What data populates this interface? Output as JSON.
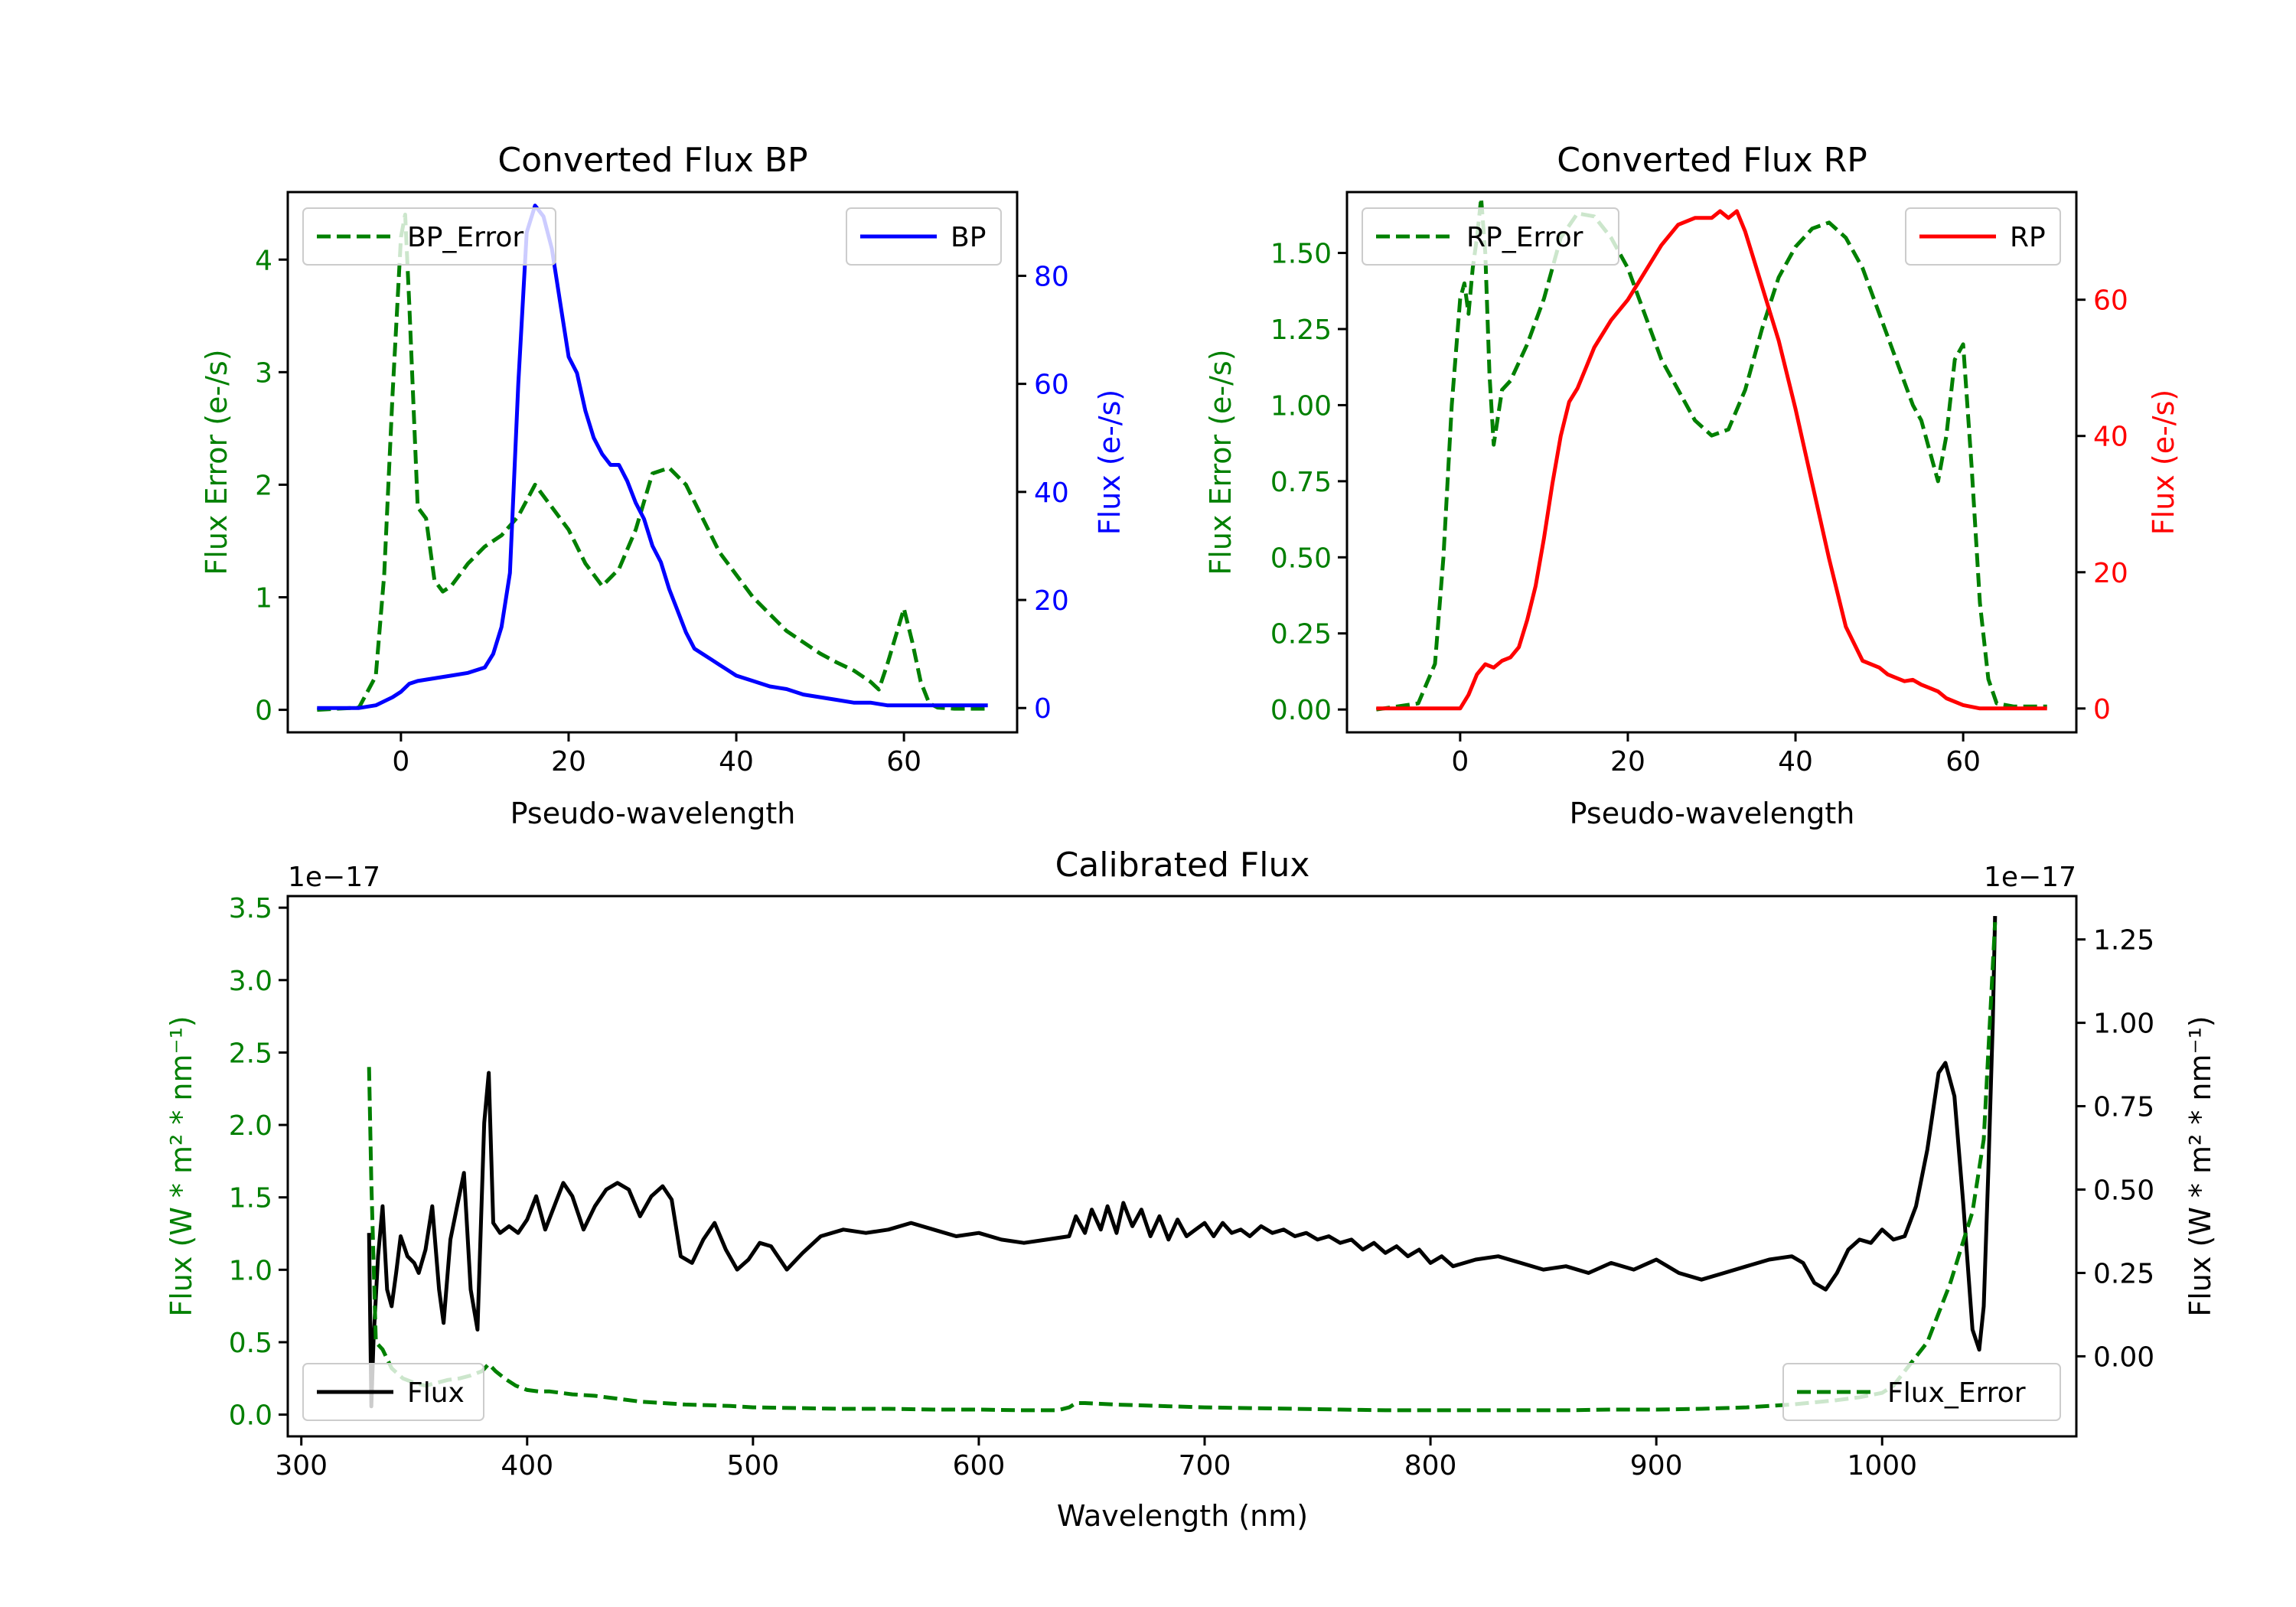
{
  "colors": {
    "green": "#008000",
    "blue": "#0000ff",
    "red": "#ff0000",
    "black": "#000000"
  },
  "chart_data": [
    {
      "id": "bp",
      "type": "line",
      "title": "Converted Flux BP",
      "xlabel": "Pseudo-wavelength",
      "ylabel_left": "Flux Error (e-/s)",
      "ylabel_right": "Flux (e-/s)",
      "xlim": [
        -13.5,
        73.5
      ],
      "ylim_left": [
        -0.2,
        4.6
      ],
      "ylim_right": [
        -4.5,
        95.5
      ],
      "xticks": [
        0,
        20,
        40,
        60
      ],
      "yticks_left": [
        0,
        1,
        2,
        3,
        4
      ],
      "yticks_right": [
        0,
        20,
        40,
        60,
        80
      ],
      "legend_left_label": "BP_Error",
      "legend_right_label": "BP",
      "series": [
        {
          "name": "BP_Error",
          "axis": "left",
          "style": "dashed",
          "color": "#008000",
          "x": [
            -10,
            -5,
            -3,
            -2,
            -1,
            0,
            0.5,
            1,
            2,
            3,
            4,
            5,
            6,
            8,
            10,
            12,
            14,
            16,
            18,
            20,
            22,
            24,
            26,
            28,
            30,
            32,
            34,
            36,
            38,
            40,
            42,
            44,
            46,
            48,
            50,
            52,
            54,
            56,
            57,
            58,
            60,
            61,
            62,
            63,
            64,
            66,
            68,
            70
          ],
          "y": [
            0,
            0.02,
            0.3,
            1.2,
            2.8,
            4.2,
            4.4,
            3.6,
            1.8,
            1.7,
            1.15,
            1.05,
            1.1,
            1.3,
            1.45,
            1.55,
            1.72,
            2.0,
            1.8,
            1.6,
            1.3,
            1.1,
            1.25,
            1.6,
            2.1,
            2.15,
            2.0,
            1.7,
            1.4,
            1.2,
            1.0,
            0.85,
            0.7,
            0.6,
            0.5,
            0.42,
            0.35,
            0.25,
            0.18,
            0.4,
            0.9,
            0.6,
            0.25,
            0.06,
            0.02,
            0.01,
            0.01,
            0.01
          ]
        },
        {
          "name": "BP",
          "axis": "right",
          "style": "solid",
          "color": "#0000ff",
          "x": [
            -10,
            -5,
            -3,
            -1,
            0,
            1,
            2,
            4,
            6,
            8,
            10,
            11,
            12,
            13,
            14,
            15,
            16,
            17,
            18,
            19,
            20,
            21,
            22,
            23,
            24,
            25,
            26,
            27,
            28,
            29,
            30,
            31,
            32,
            33,
            34,
            35,
            36,
            37,
            38,
            39,
            40,
            42,
            44,
            46,
            48,
            50,
            52,
            54,
            56,
            58,
            60,
            62,
            64,
            66,
            68,
            70
          ],
          "y": [
            0,
            0,
            0.5,
            2,
            3,
            4.5,
            5,
            5.5,
            6,
            6.5,
            7.5,
            10,
            15,
            25,
            60,
            88,
            93,
            91,
            85,
            75,
            65,
            62,
            55,
            50,
            47,
            45,
            45,
            42,
            38,
            35,
            30,
            27,
            22,
            18,
            14,
            11,
            10,
            9,
            8,
            7,
            6,
            5,
            4,
            3.5,
            2.5,
            2,
            1.5,
            1,
            1,
            0.5,
            0.5,
            0.5,
            0.5,
            0.5,
            0.5,
            0.5
          ]
        }
      ]
    },
    {
      "id": "rp",
      "type": "line",
      "title": "Converted Flux RP",
      "xlabel": "Pseudo-wavelength",
      "ylabel_left": "Flux Error (e-/s)",
      "ylabel_right": "Flux (e-/s)",
      "xlim": [
        -13.5,
        73.5
      ],
      "ylim_left": [
        -0.075,
        1.7
      ],
      "ylim_right": [
        -3.5,
        75.8
      ],
      "xticks": [
        0,
        20,
        40,
        60
      ],
      "yticks_left": [
        0.0,
        0.25,
        0.5,
        0.75,
        1.0,
        1.25,
        1.5
      ],
      "yticks_left_labels": [
        "0.00",
        "0.25",
        "0.50",
        "0.75",
        "1.00",
        "1.25",
        "1.50"
      ],
      "yticks_right": [
        0,
        20,
        40,
        60
      ],
      "legend_left_label": "RP_Error",
      "legend_right_label": "RP",
      "series": [
        {
          "name": "RP_Error",
          "axis": "left",
          "style": "dashed",
          "color": "#008000",
          "x": [
            -10,
            -5,
            -3,
            -2,
            -1,
            0,
            0.5,
            1,
            1.5,
            2,
            2.5,
            3,
            3.5,
            4,
            5,
            6,
            8,
            10,
            12,
            14,
            16,
            18,
            20,
            22,
            24,
            26,
            28,
            30,
            32,
            34,
            36,
            38,
            40,
            42,
            44,
            46,
            48,
            50,
            52,
            54,
            55,
            56,
            57,
            58,
            59,
            60,
            61,
            62,
            63,
            64,
            66,
            70
          ],
          "y": [
            0,
            0.02,
            0.15,
            0.5,
            1.0,
            1.35,
            1.4,
            1.3,
            1.45,
            1.55,
            1.68,
            1.5,
            1.1,
            0.87,
            1.05,
            1.08,
            1.2,
            1.35,
            1.55,
            1.63,
            1.62,
            1.55,
            1.45,
            1.3,
            1.15,
            1.05,
            0.95,
            0.9,
            0.92,
            1.05,
            1.25,
            1.42,
            1.52,
            1.58,
            1.6,
            1.55,
            1.45,
            1.3,
            1.15,
            1.0,
            0.95,
            0.85,
            0.75,
            0.9,
            1.15,
            1.2,
            0.8,
            0.35,
            0.1,
            0.02,
            0.01,
            0.01
          ]
        },
        {
          "name": "RP",
          "axis": "right",
          "style": "solid",
          "color": "#ff0000",
          "x": [
            -10,
            -5,
            -2,
            0,
            1,
            2,
            3,
            4,
            5,
            6,
            7,
            8,
            9,
            10,
            11,
            12,
            13,
            14,
            15,
            16,
            18,
            20,
            22,
            24,
            26,
            28,
            30,
            31,
            32,
            33,
            34,
            35,
            36,
            38,
            40,
            42,
            44,
            46,
            48,
            50,
            51,
            52,
            53,
            54,
            55,
            56,
            57,
            58,
            60,
            62,
            64,
            66,
            68,
            70
          ],
          "y": [
            0,
            0,
            0,
            0,
            2,
            5,
            6.5,
            6,
            7,
            7.5,
            9,
            13,
            18,
            25,
            33,
            40,
            45,
            47,
            50,
            53,
            57,
            60,
            64,
            68,
            71,
            72,
            72,
            73,
            72,
            73,
            70,
            66,
            62,
            54,
            44,
            33,
            22,
            12,
            7,
            6,
            5,
            4.5,
            4,
            4.2,
            3.5,
            3,
            2.5,
            1.5,
            0.5,
            0,
            0,
            0,
            0,
            0
          ]
        }
      ]
    },
    {
      "id": "calibrated",
      "type": "line",
      "title": "Calibrated Flux",
      "xlabel": "Wavelength (nm)",
      "ylabel_left": "Flux (W * m² * nm⁻¹)",
      "ylabel_right": "Flux (W * m² * nm⁻¹)",
      "offset_left": "1e−17",
      "offset_right": "1e−17",
      "xlim": [
        294,
        1086
      ],
      "ylim_left": [
        -0.15,
        3.58
      ],
      "ylim_right": [
        -0.24,
        1.38
      ],
      "xticks": [
        300,
        400,
        500,
        600,
        700,
        800,
        900,
        1000
      ],
      "yticks_left": [
        0,
        0.5,
        1.0,
        1.5,
        2.0,
        2.5,
        3.0,
        3.5
      ],
      "yticks_left_labels": [
        "0.0",
        "0.5",
        "1.0",
        "1.5",
        "2.0",
        "2.5",
        "3.0",
        "3.5"
      ],
      "yticks_right": [
        0,
        0.25,
        0.5,
        0.75,
        1.0,
        1.25
      ],
      "yticks_right_labels": [
        "0.00",
        "0.25",
        "0.50",
        "0.75",
        "1.00",
        "1.25"
      ],
      "legend_left_label": "Flux",
      "legend_right_label": "Flux_Error",
      "series": [
        {
          "name": "Flux",
          "axis": "right",
          "style": "solid",
          "color": "#000000",
          "x": [
            330,
            331,
            332,
            334,
            336,
            338,
            340,
            342,
            344,
            347,
            350,
            352,
            355,
            358,
            361,
            363,
            366,
            369,
            372,
            375,
            378,
            381,
            383,
            385,
            388,
            392,
            396,
            400,
            404,
            408,
            412,
            416,
            420,
            425,
            430,
            435,
            440,
            445,
            450,
            455,
            460,
            464,
            468,
            473,
            478,
            483,
            488,
            493,
            498,
            503,
            508,
            515,
            522,
            530,
            540,
            550,
            560,
            570,
            580,
            590,
            600,
            610,
            620,
            630,
            640,
            643,
            647,
            650,
            654,
            657,
            661,
            664,
            668,
            672,
            676,
            680,
            684,
            688,
            692,
            696,
            700,
            704,
            708,
            712,
            716,
            720,
            725,
            730,
            735,
            740,
            745,
            750,
            755,
            760,
            765,
            770,
            775,
            780,
            785,
            790,
            795,
            800,
            805,
            810,
            820,
            830,
            840,
            850,
            860,
            870,
            880,
            890,
            900,
            910,
            920,
            930,
            940,
            950,
            960,
            965,
            970,
            975,
            980,
            985,
            990,
            995,
            1000,
            1005,
            1010,
            1015,
            1020,
            1025,
            1028,
            1032,
            1036,
            1040,
            1043,
            1045,
            1047,
            1049,
            1050
          ],
          "y": [
            0.37,
            -0.15,
            0.05,
            0.3,
            0.45,
            0.2,
            0.15,
            0.25,
            0.36,
            0.3,
            0.28,
            0.25,
            0.32,
            0.45,
            0.2,
            0.1,
            0.35,
            0.45,
            0.55,
            0.2,
            0.08,
            0.7,
            0.85,
            0.4,
            0.37,
            0.39,
            0.37,
            0.41,
            0.48,
            0.38,
            0.45,
            0.52,
            0.48,
            0.38,
            0.45,
            0.5,
            0.52,
            0.5,
            0.42,
            0.48,
            0.51,
            0.47,
            0.3,
            0.28,
            0.35,
            0.4,
            0.32,
            0.26,
            0.29,
            0.34,
            0.33,
            0.26,
            0.31,
            0.36,
            0.38,
            0.37,
            0.38,
            0.4,
            0.38,
            0.36,
            0.37,
            0.35,
            0.34,
            0.35,
            0.36,
            0.42,
            0.37,
            0.44,
            0.38,
            0.45,
            0.37,
            0.46,
            0.39,
            0.44,
            0.36,
            0.42,
            0.35,
            0.41,
            0.36,
            0.38,
            0.4,
            0.36,
            0.4,
            0.37,
            0.38,
            0.36,
            0.39,
            0.37,
            0.38,
            0.36,
            0.37,
            0.35,
            0.36,
            0.34,
            0.35,
            0.32,
            0.34,
            0.31,
            0.33,
            0.3,
            0.32,
            0.28,
            0.3,
            0.27,
            0.29,
            0.3,
            0.28,
            0.26,
            0.27,
            0.25,
            0.28,
            0.26,
            0.29,
            0.25,
            0.23,
            0.25,
            0.27,
            0.29,
            0.3,
            0.28,
            0.22,
            0.2,
            0.25,
            0.32,
            0.35,
            0.34,
            0.38,
            0.35,
            0.36,
            0.45,
            0.62,
            0.85,
            0.88,
            0.78,
            0.45,
            0.08,
            0.02,
            0.15,
            0.55,
            1.0,
            1.32
          ]
        },
        {
          "name": "Flux_Error",
          "axis": "left",
          "style": "dashed",
          "color": "#008000",
          "x": [
            330,
            331,
            333,
            336,
            340,
            345,
            350,
            355,
            360,
            365,
            370,
            375,
            380,
            383,
            386,
            390,
            395,
            400,
            405,
            410,
            420,
            430,
            440,
            450,
            460,
            470,
            480,
            490,
            500,
            520,
            540,
            560,
            580,
            600,
            620,
            635,
            640,
            643,
            647,
            660,
            680,
            700,
            720,
            740,
            760,
            780,
            800,
            820,
            840,
            860,
            880,
            900,
            920,
            940,
            960,
            980,
            990,
            1000,
            1005,
            1010,
            1015,
            1020,
            1025,
            1030,
            1035,
            1040,
            1045,
            1050
          ],
          "y": [
            2.4,
            1.6,
            0.5,
            0.45,
            0.32,
            0.25,
            0.22,
            0.2,
            0.22,
            0.24,
            0.25,
            0.27,
            0.3,
            0.35,
            0.3,
            0.25,
            0.2,
            0.17,
            0.16,
            0.16,
            0.14,
            0.13,
            0.11,
            0.09,
            0.08,
            0.07,
            0.065,
            0.06,
            0.05,
            0.045,
            0.04,
            0.04,
            0.035,
            0.035,
            0.03,
            0.03,
            0.05,
            0.08,
            0.08,
            0.07,
            0.06,
            0.05,
            0.045,
            0.04,
            0.035,
            0.03,
            0.03,
            0.03,
            0.03,
            0.03,
            0.035,
            0.035,
            0.04,
            0.05,
            0.07,
            0.1,
            0.12,
            0.15,
            0.2,
            0.3,
            0.4,
            0.5,
            0.7,
            0.9,
            1.15,
            1.4,
            1.9,
            3.4
          ]
        }
      ]
    }
  ]
}
